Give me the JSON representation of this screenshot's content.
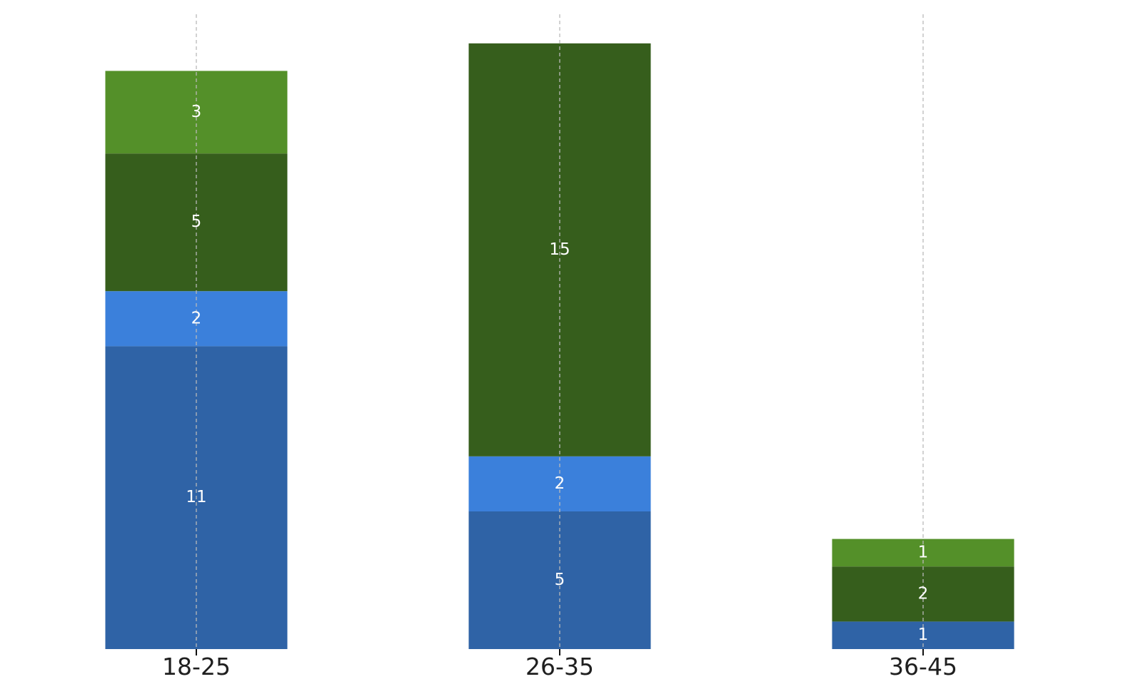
{
  "chart_data": {
    "type": "bar",
    "stacked": true,
    "categories": [
      "18-25",
      "26-35",
      "36-45"
    ],
    "series": [
      {
        "color": "#2f63a6",
        "values": [
          11,
          5,
          1
        ]
      },
      {
        "color": "#3b80db",
        "values": [
          2,
          2,
          0
        ]
      },
      {
        "color": "#365e1c",
        "values": [
          5,
          15,
          2
        ]
      },
      {
        "color": "#549029",
        "values": [
          3,
          0,
          1
        ]
      }
    ],
    "ylim": [
      0,
      23
    ],
    "grid": "x-dashed",
    "legend": "none",
    "title": "",
    "xlabel": "",
    "ylabel": ""
  }
}
